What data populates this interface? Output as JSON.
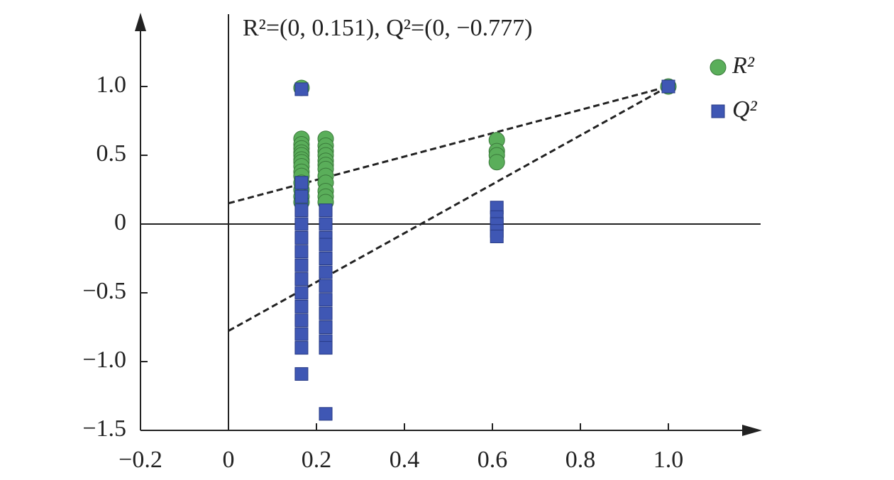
{
  "chart_data": {
    "type": "scatter",
    "title": "R²=(0, 0.151), Q²=(0, −0.777)",
    "xlim": [
      -0.2,
      1.2
    ],
    "ylim": [
      -1.5,
      1.5
    ],
    "xticks": [
      {
        "value": -0.2,
        "label": "−0.2"
      },
      0,
      {
        "value": 0.2,
        "label": "0.2"
      },
      {
        "value": 0.4,
        "label": "0.4"
      },
      {
        "value": 0.6,
        "label": "0.6"
      },
      {
        "value": 0.8,
        "label": "0.8"
      },
      {
        "value": 1.0,
        "label": "1.0"
      }
    ],
    "yticks": [
      {
        "value": -1.5,
        "label": "−1.5"
      },
      {
        "value": -1.0,
        "label": "−1.0"
      },
      {
        "value": -0.5,
        "label": "−0.5"
      },
      0,
      {
        "value": 0.5,
        "label": "0.5"
      },
      {
        "value": 1.0,
        "label": "1.0"
      }
    ],
    "legend": "upper right",
    "series": [
      {
        "name": "R²",
        "color": "#5aae5a",
        "marker": "circle",
        "x": [
          0.166,
          0.166,
          0.166,
          0.166,
          0.166,
          0.166,
          0.166,
          0.166,
          0.166,
          0.166,
          0.166,
          0.166,
          0.166,
          0.166,
          0.166,
          0.221,
          0.221,
          0.221,
          0.221,
          0.221,
          0.221,
          0.221,
          0.221,
          0.221,
          0.221,
          0.221,
          0.221,
          0.61,
          0.61,
          0.61,
          0.61,
          1.0
        ],
        "values": [
          0.99,
          0.62,
          0.58,
          0.55,
          0.52,
          0.5,
          0.47,
          0.45,
          0.42,
          0.38,
          0.35,
          0.3,
          0.25,
          0.2,
          0.16,
          0.62,
          0.57,
          0.53,
          0.5,
          0.46,
          0.43,
          0.4,
          0.35,
          0.3,
          0.24,
          0.2,
          0.16,
          0.61,
          0.53,
          0.5,
          0.45,
          1.0
        ]
      },
      {
        "name": "Q²",
        "color": "#3f57b4",
        "marker": "square",
        "x": [
          0.166,
          0.166,
          0.166,
          0.166,
          0.166,
          0.166,
          0.166,
          0.166,
          0.166,
          0.166,
          0.166,
          0.166,
          0.166,
          0.166,
          0.166,
          0.221,
          0.221,
          0.221,
          0.221,
          0.221,
          0.221,
          0.221,
          0.221,
          0.221,
          0.221,
          0.221,
          0.221,
          0.221,
          0.61,
          0.61,
          0.61,
          0.61,
          0.61,
          1.0
        ],
        "values": [
          0.98,
          0.3,
          0.2,
          0.1,
          0,
          -0.1,
          -0.2,
          -0.3,
          -0.4,
          -0.5,
          -0.6,
          -0.7,
          -0.8,
          -0.9,
          -1.09,
          0.1,
          0,
          -0.1,
          -0.15,
          -0.25,
          -0.35,
          -0.45,
          -0.55,
          -0.65,
          -0.75,
          -0.85,
          -0.9,
          -1.38,
          0.12,
          0.05,
          0,
          -0.05,
          -0.09,
          1.0
        ]
      }
    ],
    "trend_lines": [
      {
        "x": [
          0,
          1
        ],
        "y": [
          0.151,
          1
        ]
      },
      {
        "x": [
          0,
          1
        ],
        "y": [
          -0.777,
          1
        ]
      }
    ]
  }
}
